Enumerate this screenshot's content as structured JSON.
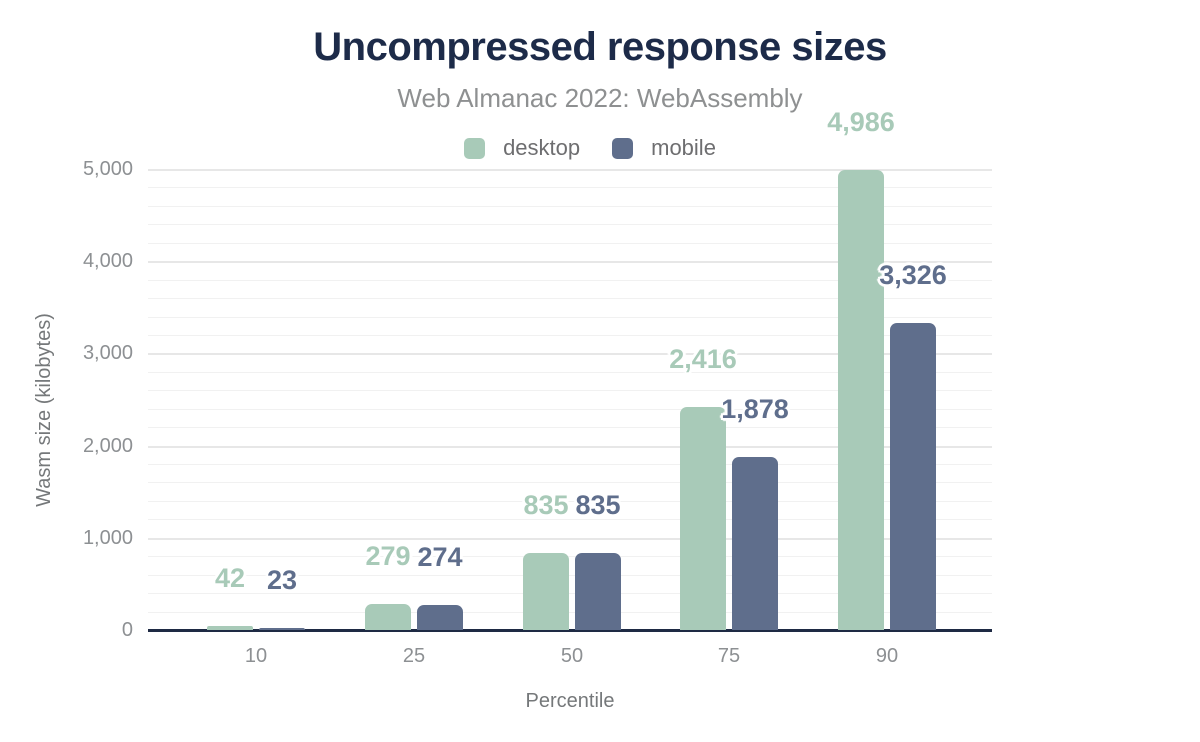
{
  "header": {
    "title": "Uncompressed response sizes",
    "subtitle": "Web Almanac 2022: WebAssembly"
  },
  "axes": {
    "x_title": "Percentile",
    "y_title": "Wasm size (kilobytes)",
    "x_ticks": [
      "10",
      "25",
      "50",
      "75",
      "90"
    ],
    "y_ticks": [
      {
        "value": 0,
        "label": "0"
      },
      {
        "value": 1000,
        "label": "1,000"
      },
      {
        "value": 2000,
        "label": "2,000"
      },
      {
        "value": 3000,
        "label": "3,000"
      },
      {
        "value": 4000,
        "label": "4,000"
      },
      {
        "value": 5000,
        "label": "5,000"
      }
    ]
  },
  "chart_data": {
    "type": "bar",
    "title": "Uncompressed response sizes",
    "subtitle": "Web Almanac 2022: WebAssembly",
    "xlabel": "Percentile",
    "ylabel": "Wasm size (kilobytes)",
    "categories": [
      "10",
      "25",
      "50",
      "75",
      "90"
    ],
    "series": [
      {
        "name": "desktop",
        "color": "#a8cab8",
        "values": [
          42,
          279,
          835,
          2416,
          4986
        ],
        "value_labels": [
          "42",
          "279",
          "835",
          "2,416",
          "4,986"
        ]
      },
      {
        "name": "mobile",
        "color": "#5f6e8c",
        "values": [
          23,
          274,
          835,
          1878,
          3326
        ],
        "value_labels": [
          "23",
          "274",
          "835",
          "1,878",
          "3,326"
        ]
      }
    ],
    "ylim": [
      0,
      5000
    ],
    "grid": {
      "minor_every": 200,
      "major_every": 1000
    },
    "legend_position": "top",
    "value_labels_shown": true
  },
  "colors": {
    "title": "#1d2b49",
    "subtitle": "#8e9091",
    "axis_line": "#1e2a44",
    "tick_label": "#8d9093",
    "axis_title": "#75787a",
    "legend_label": "#6e6e70",
    "grid_major": "#e7e7e7",
    "grid_minor": "#f1f1f1",
    "background": "#ffffff"
  }
}
